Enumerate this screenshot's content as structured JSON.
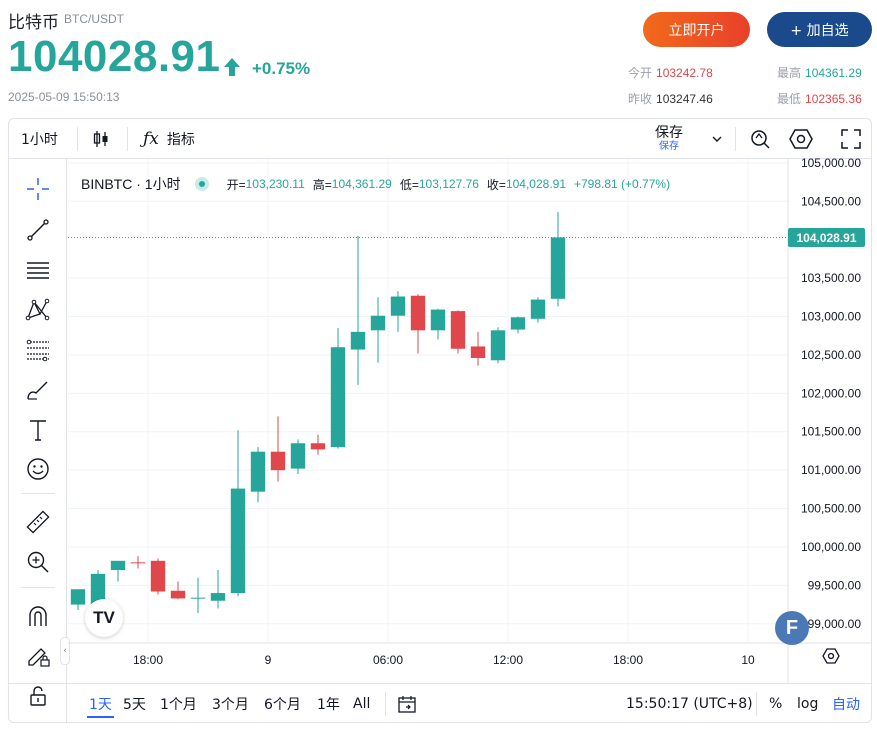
{
  "header": {
    "name": "比特币",
    "pair": "BTC/USDT",
    "price": "104028.91",
    "change": "+0.75%",
    "timestamp": "2025-05-09 15:50:13",
    "open_account_button": "立即开户",
    "watchlist_button": "+ 加自选"
  },
  "stats": {
    "today_open_label": "今开",
    "today_open": "103242.78",
    "high_label": "最高",
    "high": "104361.29",
    "prev_close_label": "昨收",
    "prev_close": "103247.46",
    "low_label": "最低",
    "low": "102365.36"
  },
  "toolbar": {
    "interval": "1小时",
    "indicators": "指标",
    "save": "保存",
    "save_sub": "保存"
  },
  "legend": {
    "symbol": "BINBTC · 1小时",
    "open_k": "开=",
    "open_v": "103,230.11",
    "high_k": "高=",
    "high_v": "104,361.29",
    "low_k": "低=",
    "low_v": "103,127.76",
    "close_k": "收=",
    "close_v": "104,028.91",
    "change": "+798.81 (+0.77%)"
  },
  "last_price_tag": "104,028.91",
  "bottom_bar": {
    "ranges": [
      "1天",
      "5天",
      "1个月",
      "3个月",
      "6个月",
      "1年",
      "All"
    ],
    "clock": "15:50:17 (UTC+8)",
    "percent": "%",
    "log": "log",
    "auto": "自动"
  },
  "badges": {
    "tv_logo": "TV",
    "f_badge": "F"
  },
  "colors": {
    "up": "#26a69a",
    "down": "#e0474a",
    "accent": "#2962ff"
  },
  "chart_data": {
    "type": "candlestick",
    "interval": "1h",
    "y_axis_labels": [
      "99,000.00",
      "99,500.00",
      "100,000.00",
      "100,500.00",
      "101,000.00",
      "101,500.00",
      "102,000.00",
      "102,500.00",
      "103,000.00",
      "103,500.00",
      "104,500.00",
      "105,000.00"
    ],
    "y_axis_values": [
      99000,
      99500,
      100000,
      100500,
      101000,
      101500,
      102000,
      102500,
      103000,
      103500,
      104500,
      105000
    ],
    "ylim": [
      98750,
      105050
    ],
    "x_axis_labels": [
      "18:00",
      "9",
      "06:00",
      "12:00",
      "18:00",
      "10"
    ],
    "x_axis_hours": [
      18,
      24,
      30,
      36,
      42,
      48
    ],
    "start_hour": 14,
    "hour_span": [
      14,
      50
    ],
    "candles": [
      {
        "o": 99250,
        "h": 99400,
        "l": 99180,
        "c": 99450
      },
      {
        "o": 99250,
        "h": 99700,
        "l": 99200,
        "c": 99650
      },
      {
        "o": 99700,
        "h": 99810,
        "l": 99550,
        "c": 99820
      },
      {
        "o": 99800,
        "h": 99880,
        "l": 99720,
        "c": 99790
      },
      {
        "o": 99820,
        "h": 99850,
        "l": 99380,
        "c": 99420
      },
      {
        "o": 99430,
        "h": 99550,
        "l": 99320,
        "c": 99330
      },
      {
        "o": 99330,
        "h": 99600,
        "l": 99140,
        "c": 99340
      },
      {
        "o": 99300,
        "h": 99700,
        "l": 99200,
        "c": 99400
      },
      {
        "o": 99400,
        "h": 101520,
        "l": 99360,
        "c": 100760
      },
      {
        "o": 100720,
        "h": 101300,
        "l": 100580,
        "c": 101240
      },
      {
        "o": 101240,
        "h": 101700,
        "l": 100850,
        "c": 101000
      },
      {
        "o": 101020,
        "h": 101400,
        "l": 100950,
        "c": 101350
      },
      {
        "o": 101350,
        "h": 101460,
        "l": 101200,
        "c": 101270
      },
      {
        "o": 101300,
        "h": 102850,
        "l": 101280,
        "c": 102600
      },
      {
        "o": 102570,
        "h": 104050,
        "l": 102110,
        "c": 102800
      },
      {
        "o": 102820,
        "h": 103250,
        "l": 102400,
        "c": 103010
      },
      {
        "o": 103010,
        "h": 103330,
        "l": 102800,
        "c": 103260
      },
      {
        "o": 103270,
        "h": 103290,
        "l": 102520,
        "c": 102820
      },
      {
        "o": 102820,
        "h": 103100,
        "l": 102700,
        "c": 103090
      },
      {
        "o": 103070,
        "h": 103080,
        "l": 102520,
        "c": 102580
      },
      {
        "o": 102610,
        "h": 102800,
        "l": 102360,
        "c": 102460
      },
      {
        "o": 102430,
        "h": 102860,
        "l": 102390,
        "c": 102820
      },
      {
        "o": 102830,
        "h": 103000,
        "l": 102780,
        "c": 102990
      },
      {
        "o": 102970,
        "h": 103250,
        "l": 102920,
        "c": 103220
      },
      {
        "o": 103230,
        "h": 104360,
        "l": 103130,
        "c": 104029
      }
    ],
    "last_price": 104028.91
  }
}
